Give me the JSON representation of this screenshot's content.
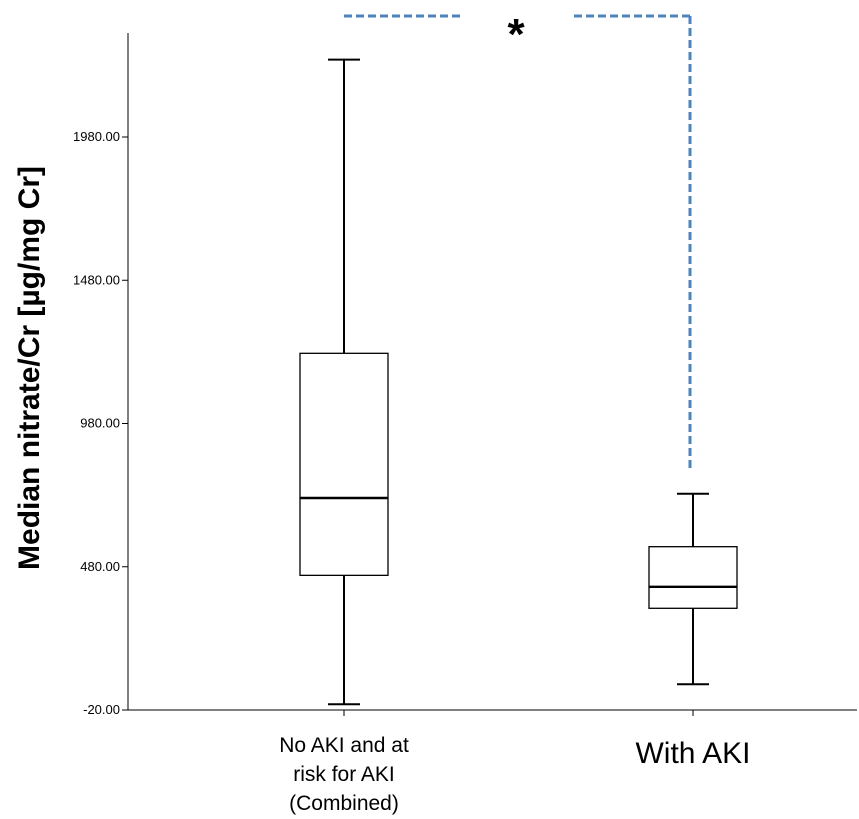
{
  "chart_data": {
    "type": "boxplot",
    "ylabel": "Median nitrate/Cr [µg/mg Cr]",
    "xlabel": "",
    "ylim": [
      -20,
      2330
    ],
    "yticks": [
      -20,
      480,
      980,
      1480,
      1980
    ],
    "ytick_labels": [
      "-20.00",
      "480.00",
      "980.00",
      "1480.00",
      "1980.00"
    ],
    "categories": [
      {
        "lines": [
          "No AKI and at",
          "risk for AKI",
          "(Combined)"
        ],
        "min": 0,
        "q1": 450,
        "median": 720,
        "q3": 1225,
        "max": 2250
      },
      {
        "lines": [
          "With AKI"
        ],
        "min": 70,
        "q1": 335,
        "median": 410,
        "q3": 550,
        "max": 735
      }
    ],
    "significance": {
      "label": "*",
      "between": [
        0,
        1
      ],
      "line_color": "#4f81bd",
      "line_style": "dashed",
      "right_end_value": 820
    },
    "grid": false,
    "legend": "none"
  },
  "colors": {
    "box_stroke": "#000000",
    "box_fill": "#ffffff",
    "axis": "#000000",
    "bracket": "#4f81bd"
  }
}
